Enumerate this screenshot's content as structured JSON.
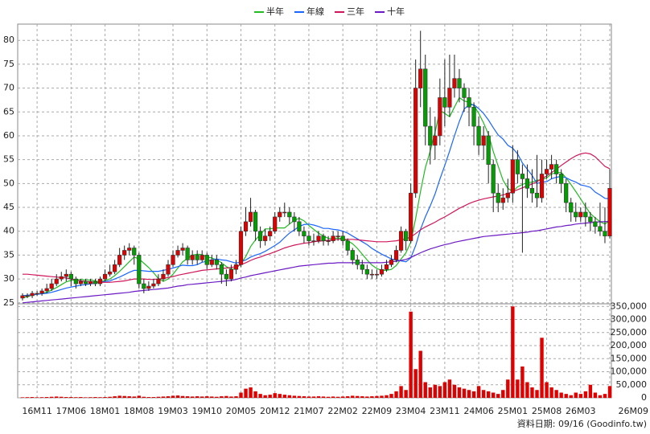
{
  "chart_data": {
    "type": "candlestick",
    "categories": [
      null,
      null,
      null,
      "16M11",
      null,
      null,
      null,
      null,
      null,
      null,
      "17M06",
      null,
      null,
      null,
      null,
      null,
      null,
      "18M01",
      null,
      null,
      null,
      null,
      null,
      null,
      "18M08",
      null,
      null,
      null,
      null,
      null,
      null,
      "19M03",
      null,
      null,
      null,
      null,
      null,
      null,
      "19M10",
      null,
      null,
      null,
      null,
      null,
      null,
      "20M05",
      null,
      null,
      null,
      null,
      null,
      null,
      "20M12",
      null,
      null,
      null,
      null,
      null,
      null,
      "21M07",
      null,
      null,
      null,
      null,
      null,
      null,
      "22M02",
      null,
      null,
      null,
      null,
      null,
      null,
      "22M09",
      null,
      null,
      null,
      null,
      null,
      null,
      "23M04",
      null,
      null,
      null,
      null,
      null,
      null,
      "23M11",
      null,
      null,
      null,
      null,
      null,
      null,
      "24M06",
      null,
      null,
      null,
      null,
      null,
      null,
      "25M01",
      null,
      null,
      null,
      null,
      null,
      null,
      "25M08",
      null,
      null,
      null,
      null,
      null,
      null,
      "26M03",
      null,
      null,
      null,
      null,
      null,
      "26M09"
    ],
    "open": [
      26,
      26.5,
      26.5,
      27,
      27,
      27.5,
      28,
      29,
      30,
      30.5,
      31,
      30,
      29,
      29.5,
      29,
      29.5,
      29,
      30,
      31,
      31.5,
      33,
      35,
      36,
      36.5,
      35,
      29,
      28,
      28.5,
      29,
      30,
      31,
      33,
      35,
      36,
      36.5,
      34,
      35,
      34,
      35,
      33,
      34,
      33,
      31,
      30,
      32,
      33,
      40,
      42,
      44,
      40,
      38,
      39,
      40,
      43,
      44,
      44,
      43,
      42,
      40,
      39,
      38,
      38,
      39,
      38,
      38,
      39,
      39,
      38,
      36,
      34,
      33,
      32,
      31,
      31,
      31,
      32,
      33,
      34,
      36,
      40,
      38,
      48,
      70,
      74,
      62,
      58,
      60,
      68,
      66,
      70,
      72,
      70,
      68,
      66,
      62,
      58,
      60,
      54,
      48,
      46,
      47,
      48,
      55,
      52,
      51,
      49,
      48,
      47,
      52,
      53,
      54,
      52,
      50,
      46,
      44,
      43,
      44,
      43,
      42,
      41,
      40,
      39
    ],
    "high": [
      27,
      27,
      27.5,
      27.5,
      28,
      29,
      30,
      31,
      31.5,
      32,
      31.5,
      30.5,
      30,
      30,
      30,
      30,
      30.5,
      32,
      33,
      34,
      36.5,
      37,
      37.5,
      37,
      35.5,
      30,
      29.5,
      30,
      31,
      32,
      34,
      36,
      37,
      37.5,
      37,
      36,
      36,
      36,
      35.5,
      35,
      35,
      33.5,
      32,
      33,
      34,
      41,
      45,
      47,
      44.5,
      41,
      40.5,
      41,
      44,
      45,
      46,
      45,
      44,
      43,
      41,
      40,
      39.5,
      40,
      39.5,
      39,
      40,
      40,
      40,
      38.5,
      36.5,
      35,
      34,
      33,
      32,
      32,
      33,
      34,
      35,
      37,
      41,
      40.5,
      50,
      76,
      82,
      77,
      66,
      64,
      72,
      76,
      77,
      77,
      74,
      71,
      70,
      67,
      64,
      62,
      61,
      55,
      50,
      49,
      51,
      58,
      57,
      54,
      54,
      53,
      56,
      55,
      55,
      56,
      55,
      53,
      51,
      47,
      46,
      45,
      46,
      44,
      43,
      46,
      45,
      53
    ],
    "low": [
      25.5,
      26,
      26,
      26.5,
      26.5,
      27,
      27.5,
      28.5,
      29.5,
      29.5,
      28.5,
      28,
      28.5,
      28.5,
      28.5,
      28.5,
      28.5,
      29.5,
      30.5,
      31,
      32.5,
      34,
      35,
      33,
      28,
      27,
      27.5,
      28,
      28.5,
      29.5,
      30.5,
      32.5,
      34.5,
      35,
      33,
      33,
      33,
      33.5,
      32,
      32.5,
      32,
      29,
      28.5,
      29.5,
      31,
      32.5,
      39,
      41,
      38,
      36.5,
      37,
      38,
      39.5,
      42,
      43,
      41.5,
      40,
      39,
      37.5,
      37,
      37,
      37.5,
      37,
      37,
      37.5,
      38,
      37,
      35,
      33,
      32,
      31,
      30,
      30,
      30,
      30.5,
      31.5,
      32.5,
      33.5,
      35.5,
      36,
      37.5,
      47,
      66,
      58,
      54,
      55,
      58,
      62,
      64,
      68,
      67,
      65,
      62,
      58,
      56,
      55,
      50,
      44,
      44,
      44.5,
      46,
      46,
      50,
      35.5,
      47,
      46,
      45,
      46,
      51,
      51,
      50,
      48,
      44,
      42,
      42,
      42,
      41,
      40,
      39.5,
      39,
      37.5,
      38.5
    ],
    "close": [
      26.5,
      26.5,
      27,
      27,
      27.5,
      28,
      29,
      30,
      30.5,
      31,
      30,
      29,
      29.5,
      29,
      29.5,
      29,
      30,
      31,
      31.5,
      33,
      35,
      36,
      36.5,
      35,
      29,
      28,
      28.5,
      29,
      30,
      31,
      33,
      35,
      36,
      36.5,
      34,
      35,
      34,
      35,
      33,
      34,
      33,
      31,
      30,
      32,
      33,
      40,
      42,
      44,
      40,
      38,
      39,
      40,
      43,
      44,
      44,
      43,
      42,
      40,
      39,
      38,
      38,
      39,
      38,
      38,
      39,
      39,
      38,
      36,
      34,
      33,
      32,
      31,
      31,
      31,
      32,
      33,
      34,
      36,
      40,
      38,
      48,
      70,
      74,
      62,
      58,
      60,
      68,
      66,
      70,
      72,
      70,
      68,
      66,
      62,
      58,
      60,
      54,
      48,
      46,
      47,
      48,
      55,
      52,
      51,
      49,
      48,
      47,
      52,
      53,
      54,
      52,
      50,
      46,
      44,
      43,
      44,
      43,
      42,
      41,
      40,
      39,
      49
    ],
    "up_color": "#e00000",
    "down_color": "#00a000",
    "ylim": [
      24.8,
      83.4
    ],
    "yticks": [
      25,
      30,
      35,
      40,
      45,
      50,
      55,
      60,
      65,
      70,
      75,
      80
    ],
    "grid": true,
    "series": [
      {
        "name": "半年",
        "color": "#22bb22",
        "values": [
          26,
          26.3,
          26.6,
          26.8,
          27,
          27.2,
          27.7,
          28.2,
          28.8,
          29.4,
          29.7,
          29.8,
          29.9,
          29.8,
          29.8,
          29.6,
          29.4,
          29.7,
          30,
          30.7,
          31.6,
          32.6,
          33.6,
          34.6,
          34.2,
          33.3,
          32.4,
          31.3,
          30.1,
          29.5,
          30,
          31,
          32.3,
          33.6,
          34.3,
          35,
          35.2,
          35.1,
          34.6,
          34.4,
          34,
          33.4,
          32.6,
          32,
          32.2,
          33.2,
          34.7,
          36.8,
          38.2,
          39.3,
          40.5,
          40.5,
          40.7,
          40.7,
          40.7,
          41.5,
          42.3,
          42.7,
          42.2,
          41.2,
          40.4,
          39.6,
          39,
          38.5,
          38.4,
          38.6,
          38.4,
          38,
          37.4,
          36.4,
          35.2,
          34,
          32.9,
          32.2,
          31.8,
          31.8,
          32,
          32.8,
          34.2,
          35.5,
          37.7,
          42.7,
          48.3,
          53.3,
          56.8,
          60.7,
          65.3,
          64.7,
          64,
          66,
          68,
          67.3,
          67,
          66.3,
          64.7,
          62.7,
          60.3,
          56.7,
          53.7,
          50.7,
          49,
          48.3,
          49.3,
          49.8,
          50.2,
          50.3,
          50.7,
          50.8,
          51.2,
          52,
          52.3,
          52.3,
          51.2,
          49.8,
          48.3,
          46.8,
          45.2,
          43.7,
          42.8,
          42,
          41.5,
          42.3
        ]
      },
      {
        "name": "年線",
        "color": "#1a66ff",
        "values": [
          26.5,
          26.6,
          26.7,
          26.8,
          26.9,
          27,
          27.2,
          27.5,
          27.8,
          28.1,
          28.3,
          28.5,
          28.7,
          28.8,
          29,
          29.1,
          29.3,
          29.5,
          29.6,
          30,
          30.4,
          30.9,
          31.4,
          31.8,
          31.8,
          31.7,
          31.6,
          31.6,
          31.6,
          31.8,
          32,
          32.3,
          32.6,
          32.9,
          32.8,
          32.8,
          33,
          33.5,
          33.7,
          34,
          34.2,
          34,
          33.9,
          33.6,
          33.3,
          33.6,
          34,
          34.6,
          35,
          35.3,
          35.8,
          36.4,
          37,
          37.7,
          38.7,
          39.6,
          40.3,
          41,
          41.4,
          41.5,
          41.3,
          41,
          40.6,
          40.6,
          40.4,
          40.3,
          40,
          39.6,
          39,
          38.4,
          37.8,
          37.2,
          36.4,
          35.8,
          35.2,
          34.7,
          34.2,
          34,
          33.8,
          33.6,
          34.4,
          37,
          40.4,
          43,
          45.3,
          47.8,
          50.9,
          53.8,
          56.8,
          60,
          63,
          65.6,
          66.5,
          66.5,
          65.7,
          64.7,
          63.3,
          61.7,
          60.2,
          59.3,
          58,
          57.4,
          56.2,
          54.3,
          53,
          51.7,
          50,
          50.3,
          50.4,
          51,
          51.3,
          51.5,
          51.2,
          50.7,
          50.3,
          49.7,
          49.5,
          49.2,
          48.2,
          47.6,
          46.9,
          46.8
        ]
      },
      {
        "name": "三年",
        "color": "#d0165a",
        "values": [
          31,
          31,
          30.9,
          30.8,
          30.7,
          30.6,
          30.5,
          30.4,
          30.3,
          30.2,
          30,
          29.8,
          29.6,
          29.5,
          29.4,
          29.3,
          29.3,
          29.3,
          29.3,
          29.4,
          29.5,
          29.6,
          29.8,
          30,
          30,
          30,
          29.9,
          29.9,
          30,
          30.1,
          30.3,
          30.5,
          30.8,
          31,
          31.2,
          31.4,
          31.6,
          31.8,
          31.9,
          32,
          32.1,
          32.2,
          32.3,
          32.4,
          32.6,
          33,
          33.4,
          33.9,
          34.3,
          34.6,
          35,
          35.3,
          35.7,
          36.1,
          36.5,
          36.8,
          37.1,
          37.3,
          37.5,
          37.6,
          37.8,
          37.9,
          38,
          38.1,
          38.2,
          38.3,
          38.3,
          38.3,
          38.3,
          38.2,
          38.1,
          38,
          37.9,
          37.8,
          37.8,
          37.8,
          37.9,
          38,
          38.2,
          38.4,
          38.8,
          39.5,
          40.3,
          40.9,
          41.4,
          41.9,
          42.5,
          43,
          43.6,
          44.2,
          44.8,
          45.3,
          45.8,
          46.2,
          46.5,
          46.8,
          47,
          47.2,
          47.4,
          47.6,
          47.9,
          48.3,
          48.7,
          49.1,
          49.5,
          49.9,
          50.4,
          51,
          51.6,
          52.3,
          53,
          53.8,
          54.5,
          55.2,
          55.8,
          56.2,
          56.4,
          56.2,
          55.6,
          54.6,
          53.6,
          53.1
        ]
      },
      {
        "name": "十年",
        "color": "#6a1bc4",
        "values": [
          25,
          25.1,
          25.2,
          25.3,
          25.4,
          25.5,
          25.6,
          25.7,
          25.8,
          25.9,
          26,
          26.1,
          26.2,
          26.3,
          26.4,
          26.5,
          26.6,
          26.7,
          26.8,
          26.9,
          27,
          27.1,
          27.2,
          27.4,
          27.5,
          27.6,
          27.7,
          27.8,
          27.9,
          28,
          28.1,
          28.3,
          28.5,
          28.6,
          28.8,
          28.9,
          29,
          29.1,
          29.2,
          29.3,
          29.4,
          29.5,
          29.6,
          29.7,
          29.9,
          30.2,
          30.4,
          30.7,
          30.9,
          31.1,
          31.3,
          31.5,
          31.7,
          31.9,
          32.1,
          32.3,
          32.5,
          32.7,
          32.8,
          32.9,
          33,
          33.1,
          33.2,
          33.3,
          33.3,
          33.4,
          33.4,
          33.4,
          33.4,
          33.4,
          33.4,
          33.4,
          33.4,
          33.4,
          33.4,
          33.5,
          33.6,
          33.7,
          33.9,
          34.1,
          34.5,
          35,
          35.5,
          35.9,
          36.3,
          36.6,
          36.9,
          37.2,
          37.4,
          37.7,
          37.9,
          38.1,
          38.3,
          38.5,
          38.7,
          38.9,
          39,
          39.1,
          39.2,
          39.3,
          39.4,
          39.5,
          39.6,
          39.7,
          39.8,
          40,
          40.1,
          40.3,
          40.5,
          40.7,
          40.9,
          41,
          41.2,
          41.3,
          41.5,
          41.6,
          41.7,
          41.8,
          41.9,
          42,
          42,
          42.1
        ]
      }
    ],
    "volume": {
      "color": "#e00000",
      "values": [
        2000,
        2500,
        3000,
        2000,
        2500,
        3000,
        4000,
        5000,
        4000,
        3000,
        3000,
        2500,
        3000,
        2000,
        2500,
        3000,
        2500,
        3000,
        4000,
        6000,
        8000,
        7000,
        6000,
        5000,
        8000,
        4000,
        3000,
        3000,
        4000,
        5000,
        6000,
        8000,
        9000,
        7000,
        6000,
        5000,
        6000,
        5000,
        6000,
        5000,
        4000,
        6000,
        7000,
        5000,
        6000,
        20000,
        35000,
        40000,
        25000,
        15000,
        10000,
        12000,
        18000,
        15000,
        12000,
        10000,
        8000,
        7000,
        6000,
        5000,
        5000,
        6000,
        5000,
        4000,
        5000,
        4000,
        5000,
        6000,
        8000,
        7000,
        6000,
        5000,
        6000,
        7000,
        8000,
        10000,
        15000,
        25000,
        45000,
        30000,
        330000,
        110000,
        180000,
        60000,
        40000,
        50000,
        45000,
        60000,
        70000,
        50000,
        40000,
        35000,
        30000,
        25000,
        45000,
        30000,
        25000,
        20000,
        15000,
        30000,
        70000,
        350000,
        70000,
        120000,
        60000,
        40000,
        30000,
        230000,
        60000,
        40000,
        30000,
        20000,
        15000,
        10000,
        20000,
        15000,
        25000,
        50000,
        20000,
        10000,
        15000,
        45000
      ],
      "y2lim": [
        0,
        360000
      ],
      "y2ticks": [
        0,
        {
          "value": 50000,
          "label": "50,000"
        },
        {
          "value": 100000,
          "label": "100,000"
        },
        {
          "value": 150000,
          "label": "150,000"
        },
        {
          "value": 200000,
          "label": "200,000"
        },
        {
          "value": 250000,
          "label": "250,000"
        },
        {
          "value": 300000,
          "label": "300,000"
        },
        {
          "value": 350000,
          "label": "350,000"
        }
      ]
    },
    "footnote": "資料日期: 09/16  (Goodinfo.tw)"
  }
}
